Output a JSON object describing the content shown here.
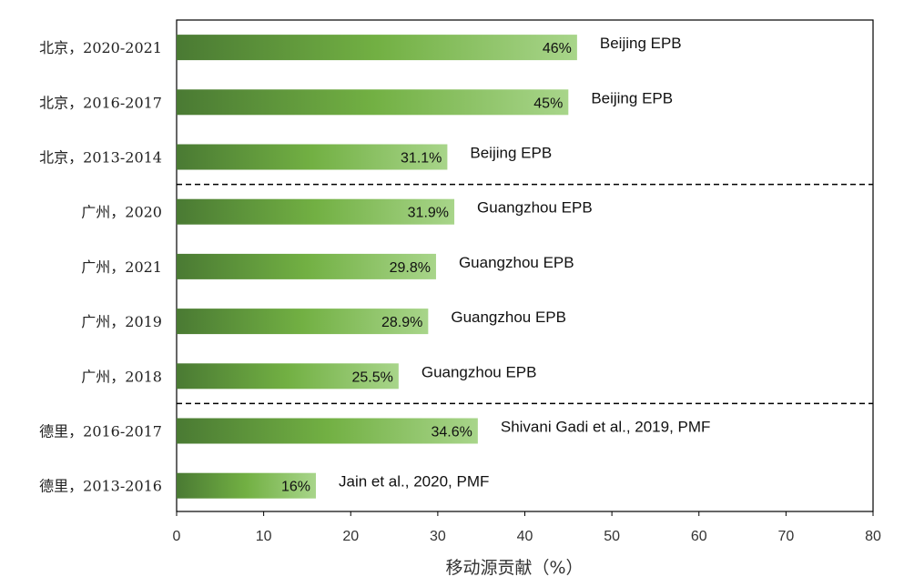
{
  "chart_data": {
    "type": "bar",
    "orientation": "horizontal",
    "xlabel": "移动源贡献（%）",
    "xlim": [
      0,
      80
    ],
    "xticks": [
      0,
      10,
      20,
      30,
      40,
      50,
      60,
      70,
      80
    ],
    "grid": false,
    "categories": [
      "北京，2020-2021",
      "北京，2016-2017",
      "北京，2013-2014",
      "广州，2020",
      "广州，2021",
      "广州，2019",
      "广州，2018",
      "德里，2016-2017",
      "德里，2013-2016"
    ],
    "values": [
      46,
      45,
      31.1,
      31.9,
      29.8,
      28.9,
      25.5,
      34.6,
      16
    ],
    "value_labels": [
      "46%",
      "45%",
      "31.1%",
      "31.9%",
      "29.8%",
      "28.9%",
      "25.5%",
      "34.6%",
      "16%"
    ],
    "sources": [
      "Beijing EPB",
      "Beijing EPB",
      "Beijing EPB",
      "Guangzhou EPB",
      "Guangzhou EPB",
      "Guangzhou EPB",
      "Guangzhou EPB",
      "Shivani Gadi et al., 2019, PMF",
      "Jain et al., 2020, PMF"
    ],
    "group_dividers_after": [
      2,
      6
    ],
    "colors": {
      "bar_dark": "#4a7a33",
      "bar_mid": "#72b043",
      "bar_light": "#a8d58a"
    }
  }
}
